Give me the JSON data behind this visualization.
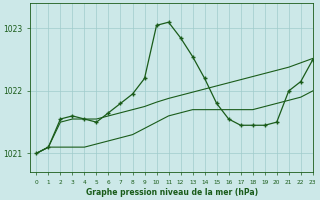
{
  "title": "Graphe pression niveau de la mer (hPa)",
  "background_color": "#cce8e8",
  "grid_color": "#a0cccc",
  "line_color": "#1a5c1a",
  "xlim": [
    -0.5,
    23
  ],
  "ylim": [
    1020.7,
    1023.4
  ],
  "yticks": [
    1021,
    1022,
    1023
  ],
  "xticks": [
    0,
    1,
    2,
    3,
    4,
    5,
    6,
    7,
    8,
    9,
    10,
    11,
    12,
    13,
    14,
    15,
    16,
    17,
    18,
    19,
    20,
    21,
    22,
    23
  ],
  "series1_x": [
    0,
    1,
    2,
    3,
    4,
    5,
    6,
    7,
    8,
    9,
    10,
    11,
    12,
    13,
    14,
    15,
    16,
    17,
    18,
    19,
    20,
    21,
    22,
    23
  ],
  "series1_y": [
    1021.0,
    1021.1,
    1021.1,
    1021.1,
    1021.1,
    1021.15,
    1021.2,
    1021.25,
    1021.3,
    1021.4,
    1021.5,
    1021.6,
    1021.65,
    1021.7,
    1021.7,
    1021.7,
    1021.7,
    1021.7,
    1021.7,
    1021.75,
    1021.8,
    1021.85,
    1021.9,
    1022.0
  ],
  "series2_x": [
    0,
    1,
    2,
    3,
    4,
    5,
    6,
    7,
    8,
    9,
    10,
    11,
    12,
    13,
    14,
    15,
    16,
    17,
    18,
    19,
    20,
    21,
    22,
    23
  ],
  "series2_y": [
    1021.0,
    1021.1,
    1021.5,
    1021.55,
    1021.55,
    1021.55,
    1021.6,
    1021.65,
    1021.7,
    1021.75,
    1021.82,
    1021.88,
    1021.93,
    1021.98,
    1022.03,
    1022.08,
    1022.13,
    1022.18,
    1022.23,
    1022.28,
    1022.33,
    1022.38,
    1022.45,
    1022.52
  ],
  "series3_x": [
    0,
    1,
    2,
    3,
    4,
    5,
    6,
    7,
    8,
    9,
    10,
    11,
    12,
    13,
    14,
    15,
    16,
    17,
    18,
    19,
    20,
    21,
    22,
    23
  ],
  "series3_y": [
    1021.0,
    1021.1,
    1021.55,
    1021.6,
    1021.55,
    1021.5,
    1021.65,
    1021.8,
    1021.95,
    1022.2,
    1023.05,
    1023.1,
    1022.85,
    1022.55,
    1022.2,
    1021.8,
    1021.55,
    1021.45,
    1021.45,
    1021.45,
    1021.5,
    1022.0,
    1022.15,
    1022.5
  ]
}
